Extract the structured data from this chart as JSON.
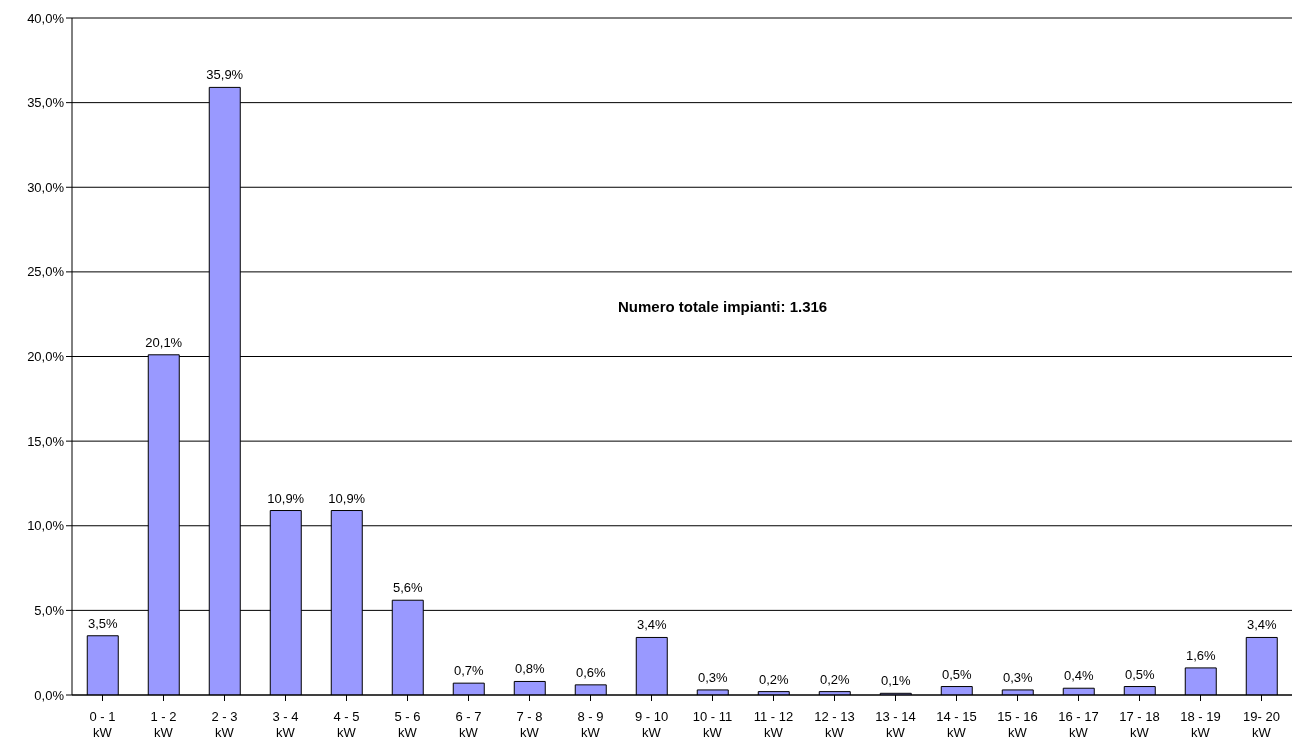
{
  "chart_data": {
    "type": "bar",
    "categories": [
      "0 - 1 kW",
      "1 - 2 kW",
      "2 - 3 kW",
      "3 - 4 kW",
      "4 - 5 kW",
      "5 - 6 kW",
      "6 - 7 kW",
      "7 - 8 kW",
      "8 - 9 kW",
      "9 - 10 kW",
      "10 - 11 kW",
      "11 - 12 kW",
      "12 - 13 kW",
      "13 - 14 kW",
      "14 - 15 kW",
      "15 - 16 kW",
      "16 - 17 kW",
      "17 - 18 kW",
      "18 - 19 kW",
      "19- 20 kW"
    ],
    "values": [
      3.5,
      20.1,
      35.9,
      10.9,
      10.9,
      5.6,
      0.7,
      0.8,
      0.6,
      3.4,
      0.3,
      0.2,
      0.2,
      0.1,
      0.5,
      0.3,
      0.4,
      0.5,
      1.6,
      3.4
    ],
    "value_labels": [
      "3,5%",
      "20,1%",
      "35,9%",
      "10,9%",
      "10,9%",
      "5,6%",
      "0,7%",
      "0,8%",
      "0,6%",
      "3,4%",
      "0,3%",
      "0,2%",
      "0,2%",
      "0,1%",
      "0,5%",
      "0,3%",
      "0,4%",
      "0,5%",
      "1,6%",
      "3,4%"
    ],
    "color": "#9999ff",
    "ylim": [
      0,
      40
    ],
    "yticks": [
      {
        "value": 0,
        "label": "0,0%"
      },
      {
        "value": 5,
        "label": "5,0%"
      },
      {
        "value": 10,
        "label": "10,0%"
      },
      {
        "value": 15,
        "label": "15,0%"
      },
      {
        "value": 20,
        "label": "20,0%"
      },
      {
        "value": 25,
        "label": "25,0%"
      },
      {
        "value": 30,
        "label": "30,0%"
      },
      {
        "value": 35,
        "label": "35,0%"
      },
      {
        "value": 40,
        "label": "40,0%"
      }
    ],
    "grid": "y",
    "annotations": [
      "Numero totale impianti: 1.316"
    ]
  }
}
